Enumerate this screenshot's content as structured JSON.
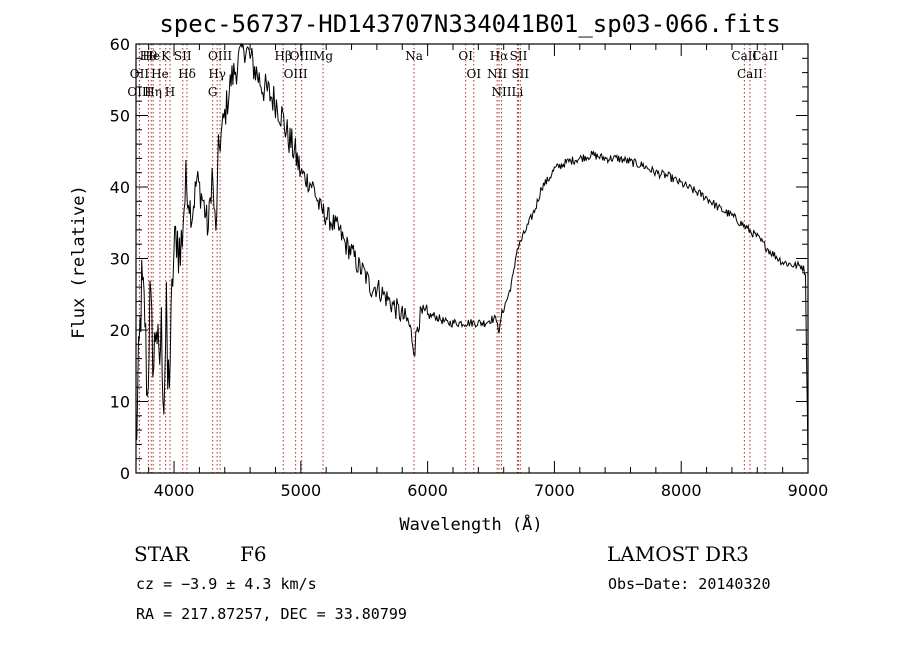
{
  "chart_data": {
    "type": "line",
    "title": "spec-56737-HD143707N334041B01_sp03-066.fits",
    "xlabel": "Wavelength (Å)",
    "ylabel": "Flux (relative)",
    "xlim": [
      3700,
      9000
    ],
    "ylim": [
      0,
      60
    ],
    "xticks": [
      4000,
      5000,
      6000,
      7000,
      8000,
      9000
    ],
    "yticks": [
      0,
      10,
      20,
      30,
      40,
      50,
      60
    ],
    "grid": false,
    "series": [
      {
        "name": "spectrum",
        "color": "#000000",
        "points": [
          [
            3700,
            3
          ],
          [
            3720,
            14
          ],
          [
            3745,
            26
          ],
          [
            3770,
            22
          ],
          [
            3790,
            10
          ],
          [
            3810,
            24
          ],
          [
            3840,
            15
          ],
          [
            3860,
            22
          ],
          [
            3880,
            14
          ],
          [
            3900,
            20
          ],
          [
            3920,
            10
          ],
          [
            3940,
            22
          ],
          [
            3950,
            12
          ],
          [
            3970,
            16
          ],
          [
            3990,
            28
          ],
          [
            4020,
            34
          ],
          [
            4050,
            30
          ],
          [
            4080,
            38
          ],
          [
            4100,
            40
          ],
          [
            4140,
            36
          ],
          [
            4180,
            41
          ],
          [
            4230,
            38
          ],
          [
            4270,
            34
          ],
          [
            4300,
            42
          ],
          [
            4330,
            33
          ],
          [
            4350,
            45
          ],
          [
            4400,
            50
          ],
          [
            4450,
            55
          ],
          [
            4500,
            57
          ],
          [
            4550,
            60
          ],
          [
            4600,
            58
          ],
          [
            4650,
            56
          ],
          [
            4700,
            54
          ],
          [
            4750,
            53
          ],
          [
            4800,
            52
          ],
          [
            4850,
            50
          ],
          [
            4900,
            47
          ],
          [
            4950,
            45
          ],
          [
            5000,
            42
          ],
          [
            5050,
            41
          ],
          [
            5100,
            40
          ],
          [
            5150,
            37
          ],
          [
            5200,
            36
          ],
          [
            5250,
            35
          ],
          [
            5300,
            34
          ],
          [
            5350,
            32
          ],
          [
            5400,
            31
          ],
          [
            5450,
            29
          ],
          [
            5500,
            28
          ],
          [
            5550,
            26
          ],
          [
            5600,
            26
          ],
          [
            5650,
            25
          ],
          [
            5700,
            24
          ],
          [
            5750,
            23
          ],
          [
            5800,
            22
          ],
          [
            5850,
            21
          ],
          [
            5890,
            18
          ],
          [
            5900,
            17.5
          ],
          [
            5920,
            21
          ],
          [
            5950,
            22
          ],
          [
            6000,
            22
          ],
          [
            6050,
            22
          ],
          [
            6100,
            21.5
          ],
          [
            6150,
            21
          ],
          [
            6200,
            21
          ],
          [
            6250,
            21
          ],
          [
            6300,
            21
          ],
          [
            6350,
            21
          ],
          [
            6400,
            21
          ],
          [
            6450,
            21
          ],
          [
            6500,
            21.5
          ],
          [
            6550,
            21.5
          ],
          [
            6563,
            19
          ],
          [
            6580,
            22
          ],
          [
            6600,
            23
          ],
          [
            6640,
            25
          ],
          [
            6680,
            28
          ],
          [
            6700,
            31
          ],
          [
            6750,
            33
          ],
          [
            6800,
            35
          ],
          [
            6850,
            37
          ],
          [
            6900,
            40
          ],
          [
            6950,
            41
          ],
          [
            7000,
            42.5
          ],
          [
            7050,
            43
          ],
          [
            7100,
            43.5
          ],
          [
            7200,
            44
          ],
          [
            7300,
            44.5
          ],
          [
            7400,
            44
          ],
          [
            7500,
            44
          ],
          [
            7600,
            43.5
          ],
          [
            7700,
            43
          ],
          [
            7800,
            42
          ],
          [
            7900,
            41.5
          ],
          [
            8000,
            40.5
          ],
          [
            8100,
            39.5
          ],
          [
            8200,
            38.5
          ],
          [
            8300,
            37
          ],
          [
            8400,
            36
          ],
          [
            8500,
            34.5
          ],
          [
            8600,
            33
          ],
          [
            8700,
            31
          ],
          [
            8800,
            29.5
          ],
          [
            8900,
            29
          ],
          [
            8950,
            29
          ],
          [
            8980,
            28
          ],
          [
            8995,
            8
          ],
          [
            9000,
            1
          ]
        ]
      }
    ],
    "line_markers": [
      {
        "name": "Hθ",
        "x": 3798
      },
      {
        "name": "OII",
        "x": 3727
      },
      {
        "name": "OIII",
        "x": 3727
      },
      {
        "name": "He",
        "x": 3820
      },
      {
        "name": "He",
        "x": 3889
      },
      {
        "name": "Hη",
        "x": 3835
      },
      {
        "name": "K",
        "x": 3934
      },
      {
        "name": "H",
        "x": 3968
      },
      {
        "name": "SII",
        "x": 4069
      },
      {
        "name": "Hδ",
        "x": 4102
      },
      {
        "name": "OIII",
        "x": 4363
      },
      {
        "name": "Hγ",
        "x": 4340
      },
      {
        "name": "G",
        "x": 4305
      },
      {
        "name": "Hβ",
        "x": 4861
      },
      {
        "name": "OIII",
        "x": 4959
      },
      {
        "name": "OIII",
        "x": 5007
      },
      {
        "name": "Mg",
        "x": 5175
      },
      {
        "name": "Na",
        "x": 5893
      },
      {
        "name": "OI",
        "x": 6300
      },
      {
        "name": "OI",
        "x": 6364
      },
      {
        "name": "Hα",
        "x": 6563
      },
      {
        "name": "NII",
        "x": 6548
      },
      {
        "name": "NII",
        "x": 6583
      },
      {
        "name": "SII",
        "x": 6717
      },
      {
        "name": "SII",
        "x": 6731
      },
      {
        "name": "Li",
        "x": 6708
      },
      {
        "name": "CaII",
        "x": 8498
      },
      {
        "name": "CaII",
        "x": 8542
      },
      {
        "name": "CaII",
        "x": 8662
      }
    ],
    "marker_color": "#b0302a"
  },
  "info": {
    "object_type": "STAR",
    "subclass": "F6",
    "survey": "LAMOST DR3",
    "cz": "cz = −3.9 ± 4.3 km/s",
    "obs_date": "Obs−Date: 20140320",
    "coords": "RA = 217.87257, DEC =  33.80799"
  }
}
